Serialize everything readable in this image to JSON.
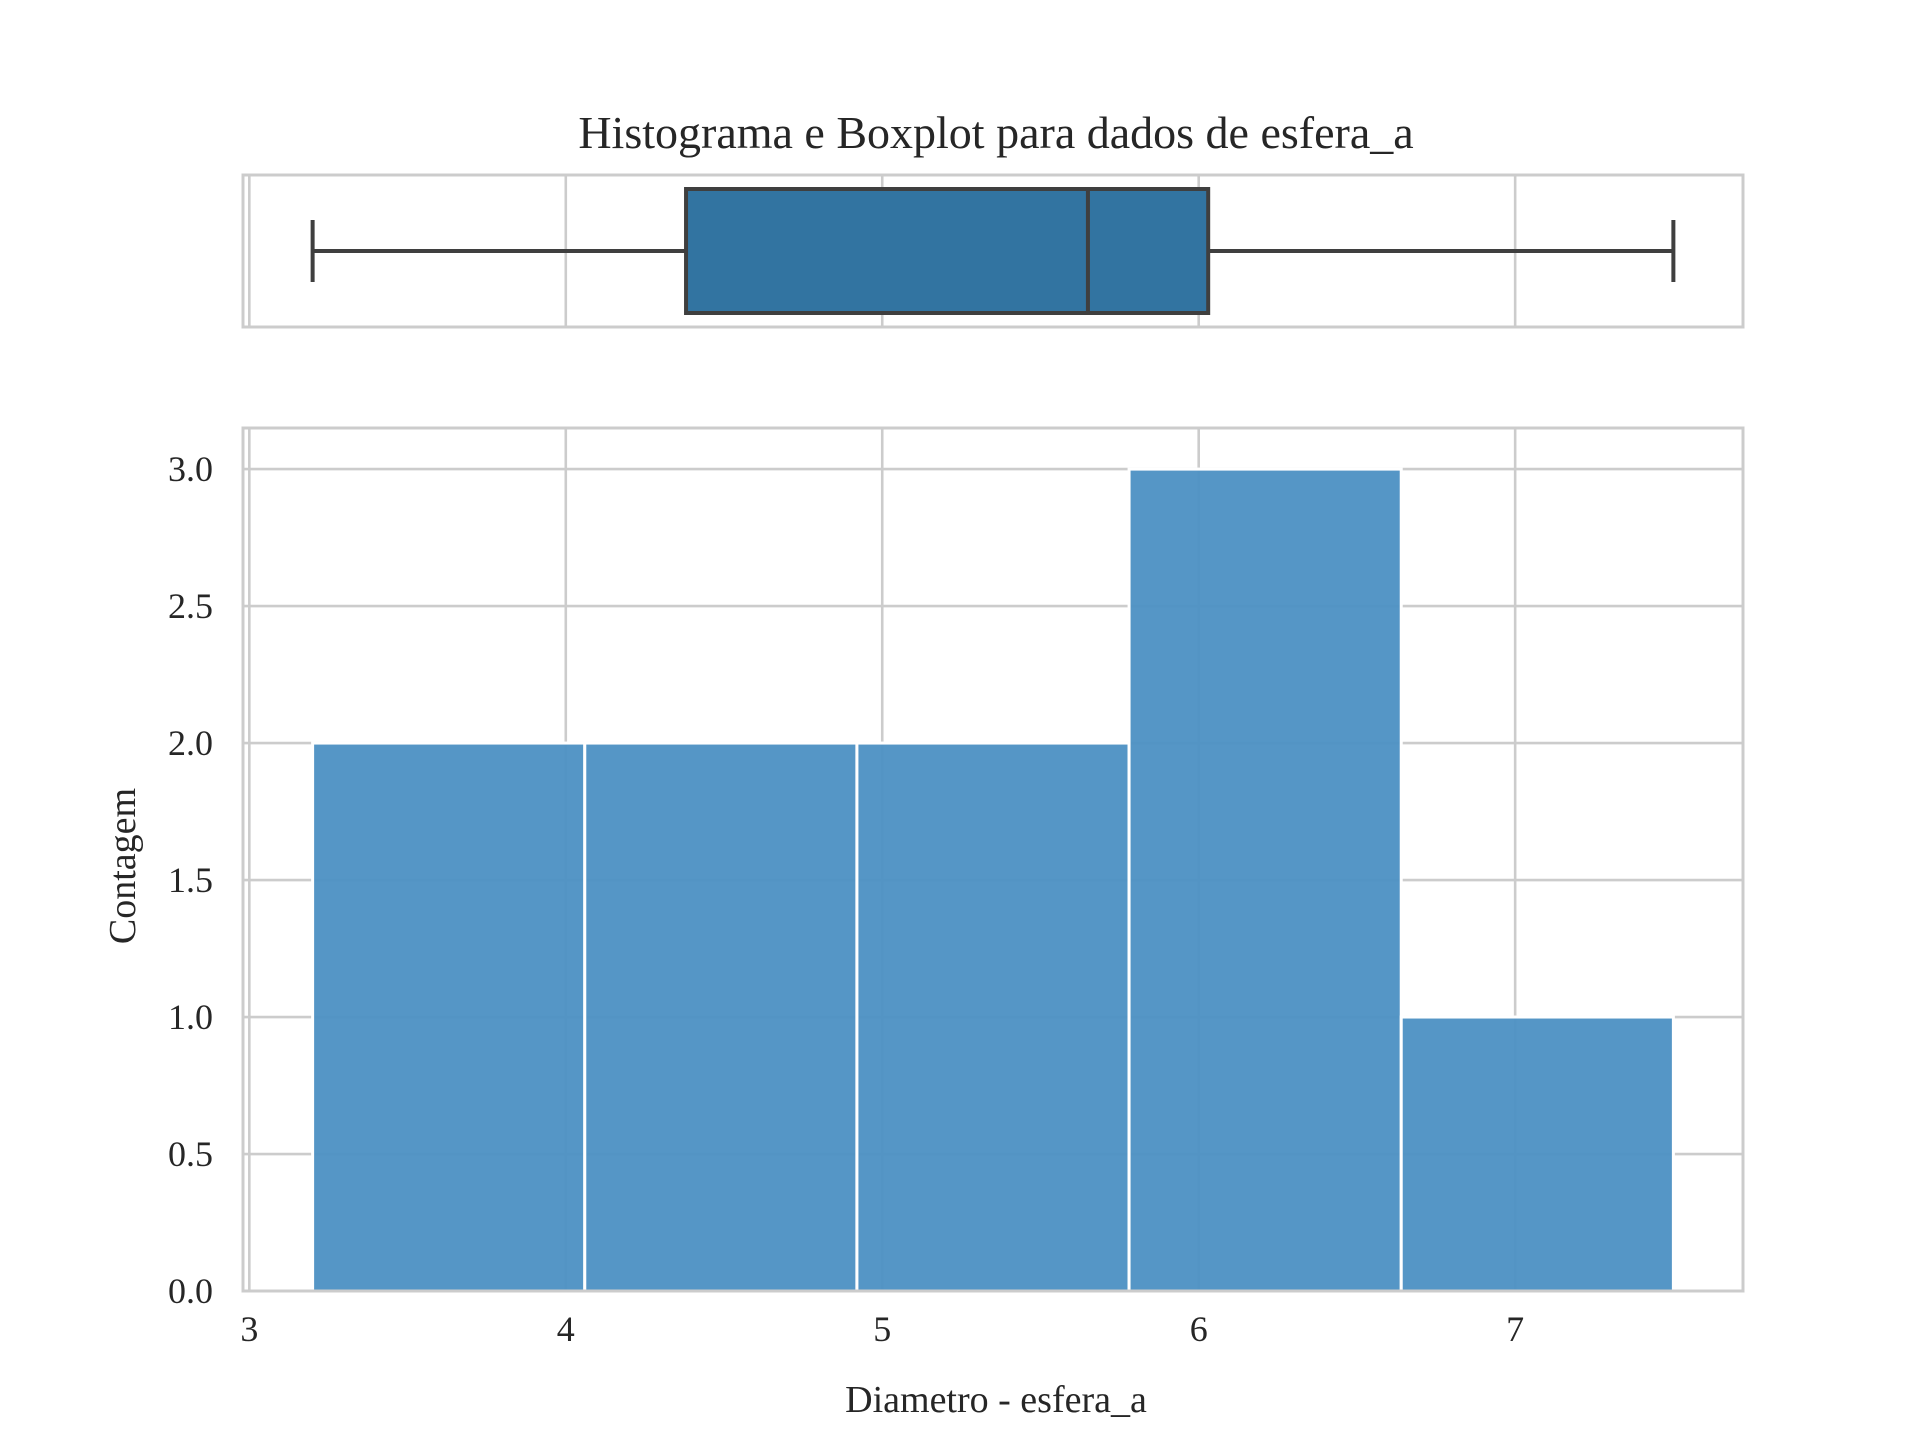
{
  "chart_data": [
    {
      "type": "boxplot",
      "title": "Histograma e Boxplot para dados de esfera_a",
      "xlim": [
        2.98,
        7.72
      ],
      "whisker_low": 3.2,
      "q1": 4.38,
      "median": 5.65,
      "q3": 6.03,
      "whisker_high": 7.5,
      "color": "#3274a1",
      "line_color": "#3f3f3f",
      "grid": true
    },
    {
      "type": "histogram",
      "xlabel": "Diametro - esfera_a",
      "ylabel": "Contagem",
      "xlim": [
        2.98,
        7.72
      ],
      "ylim": [
        0,
        3.15
      ],
      "xticks": [
        3,
        4,
        5,
        6,
        7
      ],
      "yticks": [
        0.0,
        0.5,
        1.0,
        1.5,
        2.0,
        2.5,
        3.0
      ],
      "bins": [
        {
          "start": 3.2,
          "end": 4.06,
          "count": 2
        },
        {
          "start": 4.06,
          "end": 4.92,
          "count": 2
        },
        {
          "start": 4.92,
          "end": 5.78,
          "count": 2
        },
        {
          "start": 5.78,
          "end": 6.64,
          "count": 3
        },
        {
          "start": 6.64,
          "end": 7.5,
          "count": 1
        }
      ],
      "color": "#4c90c3",
      "edge_color": "#ffffff",
      "grid": true
    }
  ]
}
